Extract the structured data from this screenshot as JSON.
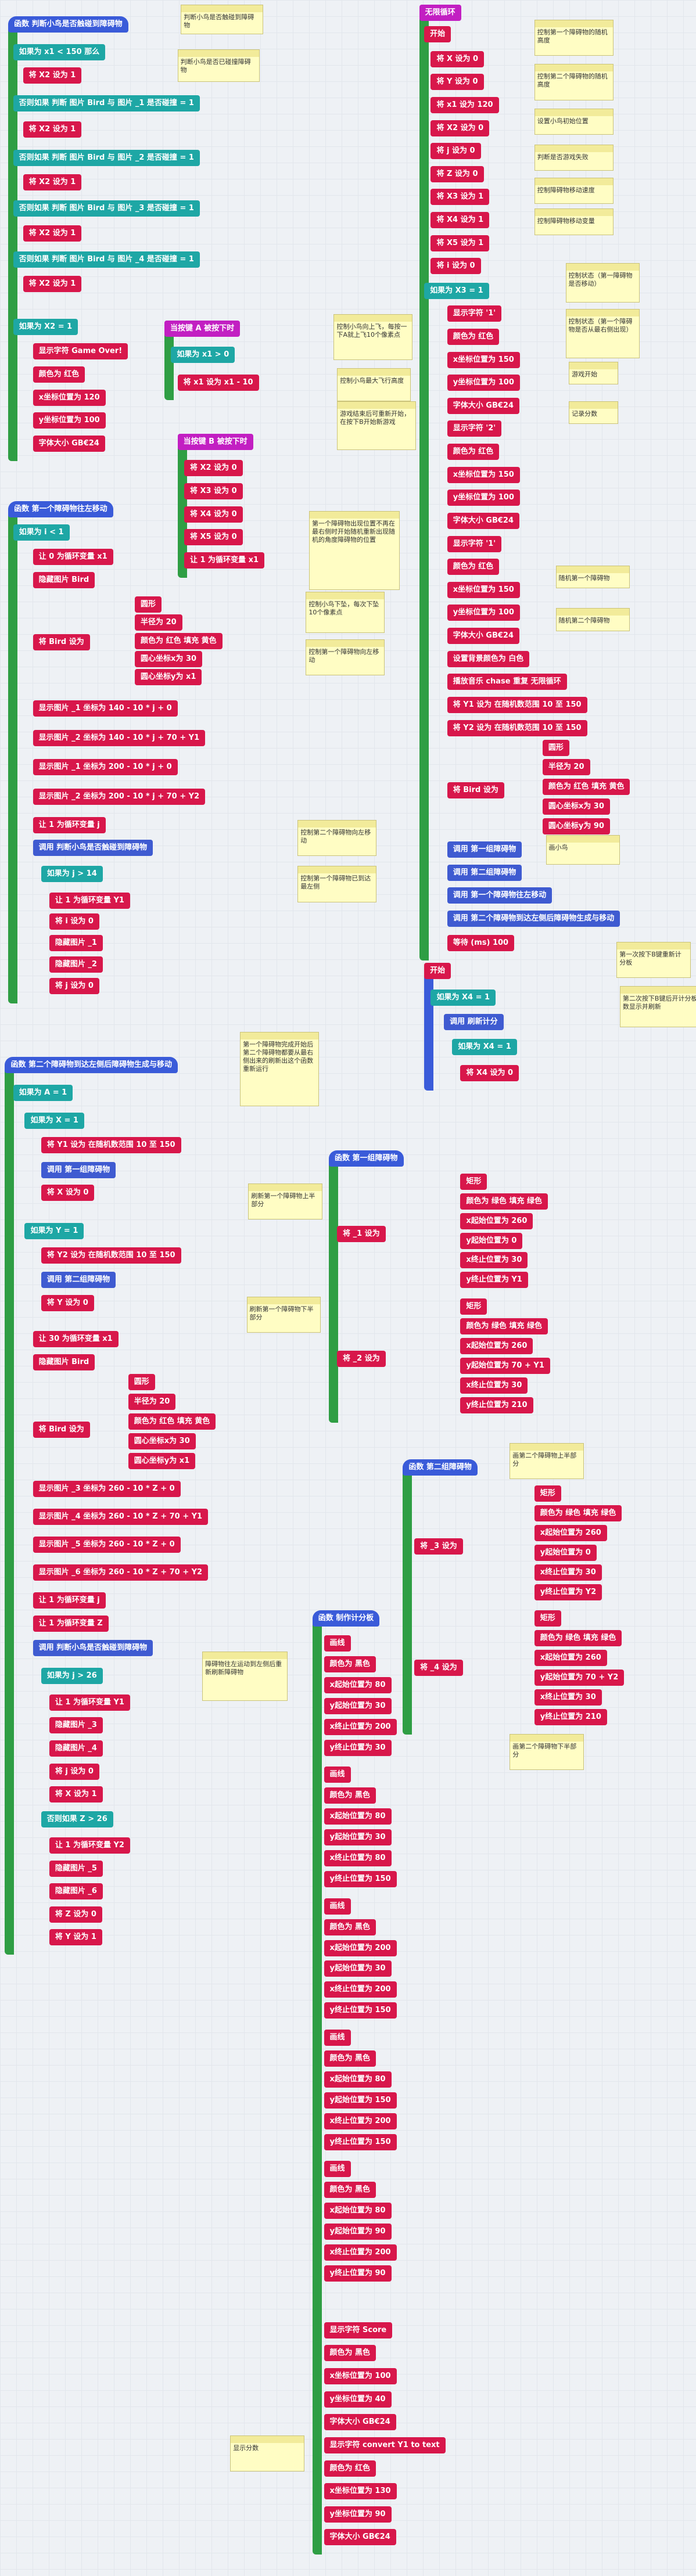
{
  "scripts": [
    {
      "rows": [
        "函数 判断小鸟是否触碰到障碍物",
        "如果为 x1 < 150 那么",
        "将 X2 设为 1",
        "否则如果 判断 图片 Bird 与 图片 _1 是否碰撞 = 1",
        "将 X2 设为 1",
        "否则如果 判断 图片 Bird 与 图片 _2 是否碰撞 = 1",
        "将 X2 设为 1",
        "否则如果 判断 图片 Bird 与 图片 _3 是否碰撞 = 1",
        "将 X2 设为 1",
        "否则如果 判断 图片 Bird 与 图片 _4 是否碰撞 = 1",
        "将 X2 设为 1",
        "如果为 X2 = 1",
        "显示字符 Game Over!",
        "颜色为 红色",
        "x坐标位置为 120",
        "y坐标位置为 100",
        "字体大小 GB€24"
      ]
    },
    {
      "rows": [
        "当按键 A 被按下时",
        "如果为 x1 > 0",
        "将 x1 设为 x1 - 10"
      ]
    },
    {
      "rows": [
        "当按键 B 被按下时",
        "将 X2 设为 0",
        "将 X3 设为 0",
        "将 X4 设为 0",
        "将 X5 设为 0",
        "让 1 为循环变量 x1"
      ]
    },
    {
      "rows": [
        "函数 第一个障碍物往左移动",
        "如果为 i < 1",
        "让 0 为循环变量 x1",
        "隐藏图片 Bird",
        "将 Bird 设为",
        "圆形",
        "半径为 20",
        "颜色为 红色 填充 黄色",
        "圆心坐标x为 30",
        "圆心坐标y为 x1",
        "显示图片 _1 坐标为 140 - 10 * j + 0",
        "显示图片 _2 坐标为 140 - 10 * j + 70 + Y1",
        "显示图片 _1 坐标为 200 - 10 * j + 0",
        "显示图片 _2 坐标为 200 - 10 * j + 70 + Y2",
        "让 1 为循环变量 j",
        "调用 判断小鸟是否触碰到障碍物",
        "如果为 j > 14",
        "让 1 为循环变量 Y1",
        "将 i 设为 0",
        "隐藏图片 _1",
        "隐藏图片 _2",
        "将 j 设为 0"
      ]
    },
    {
      "rows": [
        "函数 第二个障碍物到达左侧后障碍物生成与移动",
        "如果为 A = 1",
        "如果为 X = 1",
        "将 Y1 设为 在随机数范围 10 至 150",
        "调用 第一组障碍物",
        "将 X 设为 0",
        "如果为 Y = 1",
        "将 Y2 设为 在随机数范围 10 至 150",
        "调用 第二组障碍物",
        "将 Y 设为 0",
        "让 30 为循环变量 x1",
        "隐藏图片 Bird",
        "将 Bird 设为",
        "圆形",
        "半径为 20",
        "颜色为 红色 填充 黄色",
        "圆心坐标x为 30",
        "圆心坐标y为 x1",
        "显示图片 _3 坐标为 260 - 10 * Z + 0",
        "显示图片 _4 坐标为 260 - 10 * Z + 70 + Y1",
        "显示图片 _5 坐标为 260 - 10 * Z + 0",
        "显示图片 _6 坐标为 260 - 10 * Z + 70 + Y2",
        "让 1 为循环变量 j",
        "让 1 为循环变量 Z",
        "调用 判断小鸟是否触碰到障碍物",
        "如果为 j > 26",
        "让 1 为循环变量 Y1",
        "隐藏图片 _3",
        "隐藏图片 _4",
        "将 j 设为 0",
        "将 X 设为 1",
        "否则如果 Z > 26",
        "让 1 为循环变量 Y2",
        "隐藏图片 _5",
        "隐藏图片 _6",
        "将 Z 设为 0",
        "将 Y 设为 1"
      ]
    },
    {
      "rows": [
        "无限循环",
        "开始",
        "将 X 设为 0",
        "将 Y 设为 0",
        "将 x1 设为 120",
        "将 X2 设为 0",
        "将 j 设为 0",
        "将 Z 设为 0",
        "将 X3 设为 1",
        "将 X4 设为 1",
        "将 X5 设为 1",
        "将 i 设为 0",
        "如果为 X3 = 1",
        "显示字符 '1'",
        "颜色为 红色",
        "x坐标位置为 150",
        "y坐标位置为 100",
        "字体大小 GB€24",
        "显示字符 '2'",
        "颜色为 红色",
        "x坐标位置为 150",
        "y坐标位置为 100",
        "字体大小 GB€24",
        "显示字符 '1'",
        "颜色为 红色",
        "x坐标位置为 150",
        "y坐标位置为 100",
        "字体大小 GB€24",
        "设置背景颜色为 白色",
        "播放音乐 chase 重复 无限循环",
        "将 Y1 设为 在随机数范围 10 至 150",
        "将 Y2 设为 在随机数范围 10 至 150",
        "将 Bird 设为",
        "圆形",
        "半径为 20",
        "颜色为 红色 填充 黄色",
        "圆心坐标x为 30",
        "圆心坐标y为 90",
        "调用 第一组障碍物",
        "调用 第二组障碍物",
        "调用 第一个障碍物往左移动",
        "调用 第二个障碍物到达左侧后障碍物生成与移动",
        "等待 (ms) 100"
      ]
    },
    {
      "rows": [
        "开始",
        "如果为 X4 = 1",
        "调用 刷新计分",
        "如果为 X4 = 1",
        "将 X4 设为 0"
      ]
    },
    {
      "rows": [
        "函数 第一组障碍物",
        "将 _1 设为",
        "矩形",
        "颜色为 绿色 填充 绿色",
        "x起始位置为 260",
        "y起始位置为 0",
        "x终止位置为 30",
        "y终止位置为 Y1",
        "将 _2 设为",
        "矩形",
        "颜色为 绿色 填充 绿色",
        "x起始位置为 260",
        "y起始位置为 70 + Y1",
        "x终止位置为 30",
        "y终止位置为 210"
      ]
    },
    {
      "rows": [
        "函数 第二组障碍物",
        "将 _3 设为",
        "矩形",
        "颜色为 绿色 填充 绿色",
        "x起始位置为 260",
        "y起始位置为 0",
        "x终止位置为 30",
        "y终止位置为 Y2",
        "将 _4 设为",
        "矩形",
        "颜色为 绿色 填充 绿色",
        "x起始位置为 260",
        "y起始位置为 70 + Y2",
        "x终止位置为 30",
        "y终止位置为 210"
      ]
    },
    {
      "rows": [
        "函数 制作计分板",
        "画线",
        "颜色为 黑色",
        "x起始位置为 80",
        "y起始位置为 30",
        "x终止位置为 200",
        "y终止位置为 30",
        "画线",
        "颜色为 黑色",
        "x起始位置为 80",
        "y起始位置为 30",
        "x终止位置为 80",
        "y终止位置为 150",
        "画线",
        "颜色为 黑色",
        "x起始位置为 200",
        "y起始位置为 30",
        "x终止位置为 200",
        "y终止位置为 150",
        "画线",
        "颜色为 黑色",
        "x起始位置为 80",
        "y起始位置为 150",
        "x终止位置为 200",
        "y终止位置为 150",
        "画线",
        "颜色为 黑色",
        "x起始位置为 80",
        "y起始位置为 90",
        "x终止位置为 200",
        "y终止位置为 90",
        "显示字符 Score",
        "颜色为 黑色",
        "x坐标位置为 100",
        "y坐标位置为 40",
        "字体大小 GB€24",
        "显示字符 convert Y1 to text",
        "颜色为 红色",
        "x坐标位置为 130",
        "y坐标位置为 90",
        "字体大小 GB€24"
      ]
    }
  ],
  "comments": [
    "判断小鸟是否触碰到障碍物",
    "判断小鸟是否已碰撞障碍物",
    "控制小鸟向上飞，每按一下A就上飞10个像素点",
    "控制小鸟最大飞行高度",
    "游戏结束后可重新开始，在按下B开始新游戏",
    "第一个障碍物出现位置不再在最右侧时开始随机重新出现随机的角度障碍物的位置",
    "控制小鸟下坠，每次下坠10个像素点",
    "控制第一个障碍物向左移动",
    "控制第二个障碍物向左移动",
    "控制第一个障碍物已到达最左侧",
    "第一个障碍物完成开始后第二个障碍物都要从最右侧出来的刷新出这个函数重新运行",
    "刷新第一个障碍物上半部分",
    "刷新第一个障碍物下半部分",
    "障碍物往左运动到左侧后重新刷新障碍物",
    "控制第一个障碍物的随机高度",
    "控制第二个障碍物的随机高度",
    "设置小鸟初始位置",
    "判断是否游戏失败",
    "控制障碍物移动速度",
    "控制障碍物移动变量",
    "控制状态（第一障碍物是否移动）",
    "控制状态（第一个障碍物是否从最右侧出现）",
    "游戏开始",
    "记录分数",
    "随机第一个障碍物",
    "随机第二个障碍物",
    "画小鸟",
    "第一次按下B键重新计分板",
    "第二次按下B键后开计分板数显示并刷新",
    "画第二个障碍物上半部分",
    "画第二个障碍物下半部分",
    "显示分数"
  ]
}
